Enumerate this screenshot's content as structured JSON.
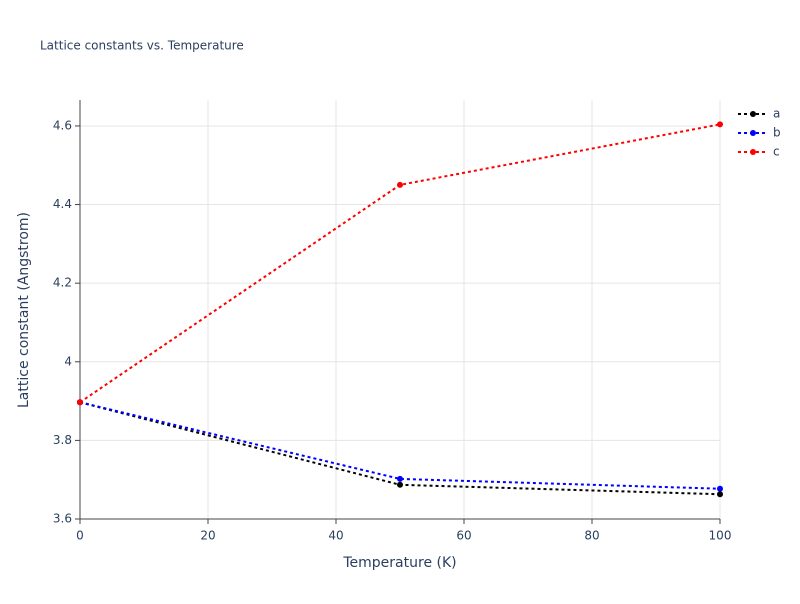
{
  "chart_data": {
    "type": "line",
    "title": "Lattice constants vs. Temperature",
    "x_label": "Temperature (K)",
    "y_label": "Lattice constant (Angstrom)",
    "x": [
      0,
      50,
      100
    ],
    "series": [
      {
        "name": "a",
        "color": "#000000",
        "values": [
          3.897,
          3.687,
          3.663
        ]
      },
      {
        "name": "b",
        "color": "#0000ff",
        "values": [
          3.897,
          3.702,
          3.677
        ]
      },
      {
        "name": "c",
        "color": "#ff0000",
        "values": [
          3.897,
          4.45,
          4.604
        ]
      }
    ],
    "xlim": [
      0,
      100
    ],
    "xticks": [
      0,
      20,
      40,
      60,
      80,
      100
    ],
    "ylim": [
      3.6,
      4.666
    ],
    "yticks": [
      3.6,
      3.8,
      4,
      4.2,
      4.4,
      4.6
    ],
    "grid": true,
    "legend": "top-right"
  }
}
